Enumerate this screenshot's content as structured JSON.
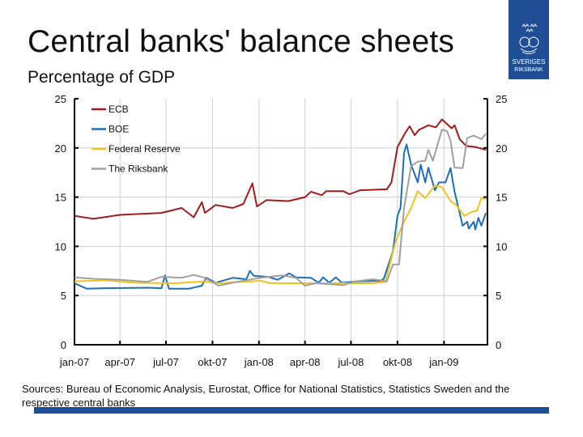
{
  "header": {
    "title": "Central banks' balance sheets",
    "subtitle": "Percentage of GDP"
  },
  "logo": {
    "text_line1": "SVERIGES",
    "text_line2": "RIKSBANK",
    "color": "#1f4e96"
  },
  "footer": {
    "sources": "Sources: Bureau of Economic Analysis,  Eurostat, Office for National Statistics, Statistics Sweden and the respective central banks"
  },
  "chart_data": {
    "type": "line",
    "title": "",
    "xlabel": "",
    "ylabel": "",
    "xlim": [
      "2007-01-01",
      "2009-03-28"
    ],
    "ylim": [
      0,
      25
    ],
    "yticks": [
      0,
      5,
      10,
      15,
      20,
      25
    ],
    "y_axis_sides": "left and right",
    "xticks": [
      {
        "date": "2007-01-01",
        "label": "jan-07"
      },
      {
        "date": "2007-04-01",
        "label": "apr-07"
      },
      {
        "date": "2007-07-01",
        "label": "jul-07"
      },
      {
        "date": "2007-10-01",
        "label": "okt-07"
      },
      {
        "date": "2008-01-01",
        "label": "jan-08"
      },
      {
        "date": "2008-04-01",
        "label": "apr-08"
      },
      {
        "date": "2008-07-01",
        "label": "jul-08"
      },
      {
        "date": "2008-10-01",
        "label": "okt-08"
      },
      {
        "date": "2009-01-01",
        "label": "jan-09"
      }
    ],
    "grid": true,
    "legend_position": "top-left",
    "series": [
      {
        "name": "ECB",
        "color": "#a01c1c",
        "points": [
          [
            "2007-01-01",
            13.1
          ],
          [
            "2007-02-07",
            12.8
          ],
          [
            "2007-04-01",
            13.2
          ],
          [
            "2007-06-22",
            13.4
          ],
          [
            "2007-08-01",
            13.9
          ],
          [
            "2007-08-25",
            12.95
          ],
          [
            "2007-09-10",
            14.5
          ],
          [
            "2007-09-16",
            13.4
          ],
          [
            "2007-10-07",
            14.2
          ],
          [
            "2007-11-10",
            13.9
          ],
          [
            "2007-12-01",
            14.3
          ],
          [
            "2007-12-19",
            16.4
          ],
          [
            "2007-12-28",
            14.05
          ],
          [
            "2008-01-16",
            14.7
          ],
          [
            "2008-02-28",
            14.6
          ],
          [
            "2008-04-01",
            15.0
          ],
          [
            "2008-04-13",
            15.55
          ],
          [
            "2008-05-04",
            15.2
          ],
          [
            "2008-05-13",
            15.6
          ],
          [
            "2008-06-16",
            15.6
          ],
          [
            "2008-06-28",
            15.3
          ],
          [
            "2008-07-19",
            15.7
          ],
          [
            "2008-09-10",
            15.8
          ],
          [
            "2008-09-19",
            16.5
          ],
          [
            "2008-10-01",
            20.1
          ],
          [
            "2008-10-16",
            21.5
          ],
          [
            "2008-10-25",
            22.2
          ],
          [
            "2008-11-04",
            21.3
          ],
          [
            "2008-11-13",
            21.85
          ],
          [
            "2008-12-01",
            22.3
          ],
          [
            "2008-12-16",
            22.1
          ],
          [
            "2008-12-28",
            22.9
          ],
          [
            "2009-01-16",
            22.0
          ],
          [
            "2009-01-22",
            22.3
          ],
          [
            "2009-02-01",
            20.9
          ],
          [
            "2009-02-14",
            20.2
          ],
          [
            "2009-03-04",
            20.1
          ],
          [
            "2009-03-25",
            19.8
          ]
        ]
      },
      {
        "name": "BOE",
        "color": "#1f6fb5",
        "points": [
          [
            "2007-01-01",
            6.25
          ],
          [
            "2007-01-25",
            5.7
          ],
          [
            "2007-03-04",
            5.75
          ],
          [
            "2007-05-25",
            5.8
          ],
          [
            "2007-06-22",
            5.75
          ],
          [
            "2007-06-29",
            7.05
          ],
          [
            "2007-07-07",
            5.7
          ],
          [
            "2007-08-16",
            5.7
          ],
          [
            "2007-09-10",
            6.0
          ],
          [
            "2007-09-19",
            6.8
          ],
          [
            "2007-10-07",
            6.3
          ],
          [
            "2007-11-10",
            6.8
          ],
          [
            "2007-12-07",
            6.65
          ],
          [
            "2007-12-14",
            7.5
          ],
          [
            "2007-12-22",
            7.0
          ],
          [
            "2008-01-19",
            6.9
          ],
          [
            "2008-02-07",
            6.6
          ],
          [
            "2008-03-01",
            7.25
          ],
          [
            "2008-03-14",
            6.85
          ],
          [
            "2008-04-13",
            6.8
          ],
          [
            "2008-04-28",
            6.3
          ],
          [
            "2008-05-07",
            6.85
          ],
          [
            "2008-05-19",
            6.3
          ],
          [
            "2008-06-01",
            6.85
          ],
          [
            "2008-06-13",
            6.3
          ],
          [
            "2008-07-16",
            6.45
          ],
          [
            "2008-08-28",
            6.5
          ],
          [
            "2008-09-04",
            6.7
          ],
          [
            "2008-09-22",
            9.5
          ],
          [
            "2008-10-01",
            13.1
          ],
          [
            "2008-10-07",
            13.9
          ],
          [
            "2008-10-14",
            19.5
          ],
          [
            "2008-10-19",
            20.35
          ],
          [
            "2008-10-28",
            18.3
          ],
          [
            "2008-11-10",
            16.5
          ],
          [
            "2008-11-16",
            18.3
          ],
          [
            "2008-11-25",
            16.5
          ],
          [
            "2008-12-01",
            18.0
          ],
          [
            "2008-12-14",
            15.7
          ],
          [
            "2008-12-22",
            16.5
          ],
          [
            "2009-01-04",
            16.5
          ],
          [
            "2009-01-14",
            17.95
          ],
          [
            "2009-01-22",
            15.55
          ],
          [
            "2009-02-07",
            12.1
          ],
          [
            "2009-02-16",
            12.5
          ],
          [
            "2009-02-19",
            11.8
          ],
          [
            "2009-03-01",
            12.5
          ],
          [
            "2009-03-04",
            11.7
          ],
          [
            "2009-03-10",
            12.9
          ],
          [
            "2009-03-16",
            12.1
          ],
          [
            "2009-03-25",
            13.4
          ]
        ]
      },
      {
        "name": "Federal Reserve",
        "color": "#f2c318",
        "points": [
          [
            "2007-01-01",
            6.45
          ],
          [
            "2007-03-04",
            6.55
          ],
          [
            "2007-04-28",
            6.3
          ],
          [
            "2007-07-19",
            6.25
          ],
          [
            "2007-09-16",
            6.45
          ],
          [
            "2007-10-13",
            6.25
          ],
          [
            "2008-01-04",
            6.5
          ],
          [
            "2008-01-25",
            6.25
          ],
          [
            "2008-04-22",
            6.25
          ],
          [
            "2008-06-16",
            6.25
          ],
          [
            "2008-08-13",
            6.25
          ],
          [
            "2008-09-07",
            6.4
          ],
          [
            "2008-09-28",
            10.6
          ],
          [
            "2008-10-14",
            12.5
          ],
          [
            "2008-10-28",
            13.9
          ],
          [
            "2008-11-10",
            15.6
          ],
          [
            "2008-11-25",
            14.9
          ],
          [
            "2008-12-14",
            16.2
          ],
          [
            "2008-12-28",
            16.0
          ],
          [
            "2009-01-14",
            14.6
          ],
          [
            "2009-01-25",
            14.2
          ],
          [
            "2009-02-10",
            13.1
          ],
          [
            "2009-02-25",
            13.5
          ],
          [
            "2009-03-07",
            13.6
          ],
          [
            "2009-03-16",
            14.9
          ],
          [
            "2009-03-25",
            14.8
          ]
        ]
      },
      {
        "name": "The Riksbank",
        "color": "#a0a0a0",
        "points": [
          [
            "2007-01-01",
            6.85
          ],
          [
            "2007-02-07",
            6.7
          ],
          [
            "2007-04-01",
            6.6
          ],
          [
            "2007-05-25",
            6.4
          ],
          [
            "2007-06-22",
            6.9
          ],
          [
            "2007-08-01",
            6.8
          ],
          [
            "2007-08-25",
            7.1
          ],
          [
            "2007-09-16",
            6.8
          ],
          [
            "2007-10-13",
            6.0
          ],
          [
            "2007-11-19",
            6.4
          ],
          [
            "2008-01-04",
            6.8
          ],
          [
            "2008-02-16",
            7.05
          ],
          [
            "2008-03-14",
            6.8
          ],
          [
            "2008-04-01",
            6.0
          ],
          [
            "2008-04-22",
            6.25
          ],
          [
            "2008-06-16",
            6.05
          ],
          [
            "2008-07-10",
            6.45
          ],
          [
            "2008-08-13",
            6.65
          ],
          [
            "2008-09-10",
            6.45
          ],
          [
            "2008-09-22",
            8.15
          ],
          [
            "2008-10-04",
            8.15
          ],
          [
            "2008-10-14",
            13.9
          ],
          [
            "2008-10-28",
            18.15
          ],
          [
            "2008-11-10",
            18.6
          ],
          [
            "2008-11-25",
            18.7
          ],
          [
            "2008-12-01",
            19.8
          ],
          [
            "2008-12-10",
            18.7
          ],
          [
            "2008-12-28",
            21.85
          ],
          [
            "2009-01-07",
            21.7
          ],
          [
            "2009-01-14",
            20.75
          ],
          [
            "2009-01-22",
            18.0
          ],
          [
            "2009-02-07",
            17.95
          ],
          [
            "2009-02-16",
            21.0
          ],
          [
            "2009-03-01",
            21.25
          ],
          [
            "2009-03-16",
            20.9
          ],
          [
            "2009-03-25",
            21.45
          ]
        ]
      }
    ]
  }
}
